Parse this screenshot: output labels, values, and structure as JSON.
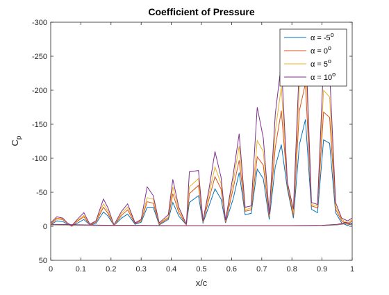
{
  "chart_data": {
    "type": "line",
    "title": "Coefficient of Pressure",
    "xlabel": "x/c",
    "ylabel_main": "C",
    "ylabel_sub": "p",
    "xlim": [
      0,
      1
    ],
    "ylim": [
      50,
      -300
    ],
    "y_reversed": true,
    "grid": false,
    "legend_position": "top-right",
    "xticks": [
      0,
      0.1,
      0.2,
      0.3,
      0.4,
      0.5,
      0.6,
      0.7,
      0.8,
      0.9,
      1
    ],
    "xtick_labels": [
      "0",
      "0.1",
      "0.2",
      "0.3",
      "0.4",
      "0.5",
      "0.6",
      "0.7",
      "0.8",
      "0.9",
      "1"
    ],
    "yticks": [
      -300,
      -250,
      -200,
      -150,
      -100,
      -50,
      0,
      50
    ],
    "ytick_labels": [
      "-300",
      "-250",
      "-200",
      "-150",
      "-100",
      "-50",
      "0",
      "50"
    ],
    "series": [
      {
        "name": "α = -5°",
        "label_prefix": "α = -5",
        "label_sup": "o",
        "color": "#0072BD",
        "x": [
          0,
          0.02,
          0.04,
          0.055,
          0.07,
          0.09,
          0.11,
          0.13,
          0.15,
          0.175,
          0.19,
          0.21,
          0.235,
          0.255,
          0.28,
          0.3,
          0.32,
          0.34,
          0.36,
          0.39,
          0.405,
          0.425,
          0.45,
          0.46,
          0.49,
          0.505,
          0.525,
          0.545,
          0.565,
          0.58,
          0.605,
          0.625,
          0.645,
          0.665,
          0.685,
          0.705,
          0.725,
          0.745,
          0.765,
          0.785,
          0.805,
          0.825,
          0.845,
          0.865,
          0.885,
          0.905,
          0.925,
          0.945,
          0.965,
          0.985,
          1.0
        ],
        "y": [
          -2,
          -8,
          -7,
          -3,
          0,
          -5,
          -10,
          -2,
          -4,
          -21,
          -15,
          -1,
          -12,
          -18,
          -3,
          -6,
          -28,
          -28,
          -2,
          -10,
          -35,
          -15,
          -2,
          -35,
          -45,
          -5,
          -30,
          -55,
          -40,
          -5,
          -40,
          -79,
          -17,
          -19,
          -84,
          -70,
          -10,
          -88,
          -120,
          -55,
          -12,
          -120,
          -157,
          -25,
          -20,
          -127,
          -122,
          -20,
          -5,
          -1,
          -5
        ]
      },
      {
        "name": "α = 0°",
        "label_prefix": "α = 0",
        "label_sup": "o",
        "color": "#D95319",
        "x": [
          0,
          0.02,
          0.04,
          0.055,
          0.07,
          0.09,
          0.11,
          0.13,
          0.15,
          0.175,
          0.19,
          0.21,
          0.235,
          0.255,
          0.28,
          0.3,
          0.32,
          0.34,
          0.36,
          0.39,
          0.405,
          0.425,
          0.45,
          0.46,
          0.49,
          0.505,
          0.525,
          0.545,
          0.565,
          0.58,
          0.605,
          0.625,
          0.645,
          0.665,
          0.685,
          0.705,
          0.725,
          0.745,
          0.765,
          0.785,
          0.805,
          0.825,
          0.845,
          0.865,
          0.885,
          0.905,
          0.925,
          0.945,
          0.965,
          0.985,
          1.0
        ],
        "y": [
          -3,
          -11,
          -10,
          -4,
          0,
          -8,
          -14,
          -2,
          -6,
          -28,
          -19,
          -1,
          -16,
          -24,
          -4,
          -8,
          -36,
          -34,
          -3,
          -12,
          -48,
          -20,
          -2,
          -48,
          -60,
          -6,
          -40,
          -73,
          -55,
          -6,
          -55,
          -97,
          -22,
          -24,
          -102,
          -90,
          -13,
          -116,
          -170,
          -60,
          -15,
          -170,
          -210,
          -30,
          -27,
          -168,
          -160,
          -25,
          -8,
          -3,
          -8
        ]
      },
      {
        "name": "α = 5°",
        "label_prefix": "α = 5",
        "label_sup": "o",
        "color": "#EDB120",
        "x": [
          0,
          0.02,
          0.04,
          0.055,
          0.07,
          0.09,
          0.11,
          0.13,
          0.15,
          0.175,
          0.19,
          0.21,
          0.235,
          0.255,
          0.28,
          0.3,
          0.32,
          0.34,
          0.36,
          0.39,
          0.405,
          0.425,
          0.45,
          0.46,
          0.49,
          0.505,
          0.525,
          0.545,
          0.565,
          0.58,
          0.605,
          0.625,
          0.645,
          0.665,
          0.685,
          0.705,
          0.725,
          0.745,
          0.765,
          0.785,
          0.805,
          0.825,
          0.845,
          0.865,
          0.885,
          0.905,
          0.925,
          0.945,
          0.965,
          0.985,
          1.0
        ],
        "y": [
          -4,
          -12,
          -11,
          -4,
          -1,
          -9,
          -16,
          -3,
          -7,
          -33,
          -22,
          -1,
          -19,
          -28,
          -5,
          -9,
          -42,
          -40,
          -4,
          -14,
          -58,
          -24,
          -3,
          -58,
          -70,
          -7,
          -48,
          -87,
          -63,
          -8,
          -65,
          -118,
          -24,
          -27,
          -126,
          -110,
          -15,
          -140,
          -205,
          -62,
          -20,
          -205,
          -255,
          -32,
          -30,
          -200,
          -190,
          -30,
          -10,
          -5,
          -10
        ]
      },
      {
        "name": "α = 10°",
        "label_prefix": "α = 10",
        "label_sup": "o",
        "color": "#7E2F8E",
        "x": [
          0,
          0.02,
          0.04,
          0.055,
          0.07,
          0.09,
          0.11,
          0.13,
          0.15,
          0.175,
          0.19,
          0.21,
          0.235,
          0.255,
          0.28,
          0.3,
          0.32,
          0.34,
          0.36,
          0.39,
          0.405,
          0.425,
          0.45,
          0.46,
          0.49,
          0.505,
          0.525,
          0.545,
          0.565,
          0.58,
          0.605,
          0.625,
          0.645,
          0.665,
          0.685,
          0.705,
          0.725,
          0.745,
          0.765,
          0.785,
          0.805,
          0.825,
          0.845,
          0.865,
          0.885,
          0.905,
          0.925,
          0.945,
          0.965,
          0.985,
          1.0
        ],
        "y": [
          -5,
          -14,
          -12,
          -5,
          -1,
          -11,
          -20,
          -3,
          -8,
          -40,
          -27,
          -2,
          -22,
          -33,
          -5,
          -10,
          -58,
          -45,
          -5,
          -17,
          -69,
          -28,
          -3,
          -80,
          -82,
          -8,
          -55,
          -110,
          -72,
          -9,
          -75,
          -136,
          -28,
          -30,
          -175,
          -130,
          -18,
          -165,
          -240,
          -65,
          -25,
          -240,
          -280,
          -35,
          -32,
          -240,
          -228,
          -35,
          -12,
          -8,
          -12
        ]
      }
    ],
    "lower_surface_note": "near-zero Cp along lower surface for all series",
    "lower_surface": {
      "x": [
        0,
        0.1,
        0.2,
        0.3,
        0.4,
        0.5,
        0.6,
        0.7,
        0.8,
        0.9,
        0.95,
        0.98,
        1.0
      ],
      "y": [
        -2,
        -1.5,
        -1,
        -1,
        -0.5,
        -0.5,
        -0.5,
        -0.5,
        -0.5,
        -1,
        -2,
        -4,
        -2
      ]
    }
  }
}
